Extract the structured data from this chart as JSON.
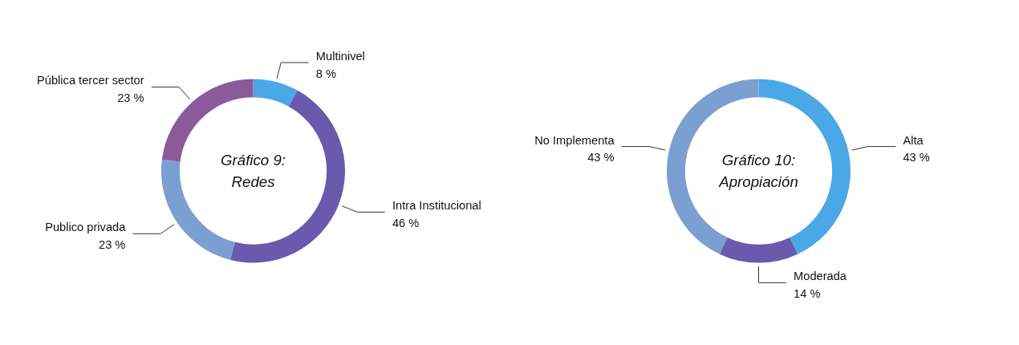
{
  "chart_data": [
    {
      "type": "donut",
      "title": "Gráfico 9:\nRedes",
      "categories": [
        "Multinivel",
        "Intra Institucional",
        "Publico privada",
        "Pública tercer sector"
      ],
      "values": [
        8,
        46,
        23,
        23
      ],
      "colors": [
        "#4aa8e8",
        "#6a5aad",
        "#7b9fd0",
        "#8b5a9a"
      ],
      "value_labels": [
        "8 %",
        "46 %",
        "23 %",
        "23 %"
      ]
    },
    {
      "type": "donut",
      "title": "Gráfico 10:\nApropiación",
      "categories": [
        "Alta",
        "Moderada",
        "No Implementa"
      ],
      "values": [
        43,
        14,
        43
      ],
      "colors": [
        "#4aa8e8",
        "#6a5aad",
        "#7b9fd0"
      ],
      "value_labels": [
        "43 %",
        "14 %",
        "43 %"
      ]
    }
  ]
}
